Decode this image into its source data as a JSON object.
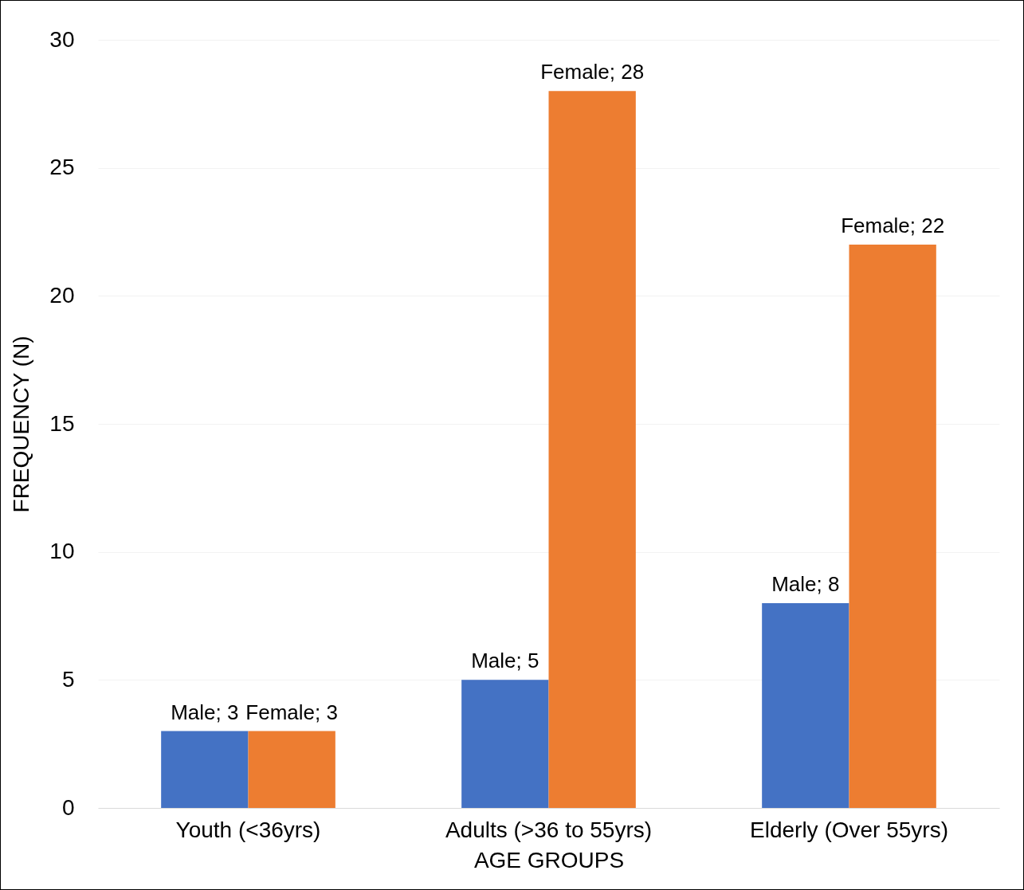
{
  "chart_data": {
    "type": "bar",
    "xlabel": "AGE GROUPS",
    "ylabel": "FREQUENCY (N)",
    "categories": [
      "Youth (<36yrs)",
      "Adults (>36 to 55yrs)",
      "Elderly (Over 55yrs)"
    ],
    "series": [
      {
        "color": "#4472c4",
        "values": [
          3,
          5,
          8
        ],
        "value_labels": [
          "Male; 3",
          "Male; 5",
          "Male; 8"
        ]
      },
      {
        "color": "#ed7d31",
        "values": [
          3,
          28,
          22
        ],
        "value_labels": [
          "Female; 3",
          "Female; 28",
          "Female; 22"
        ]
      }
    ],
    "ylim": [
      0,
      30
    ],
    "yticks": [
      0,
      5,
      10,
      15,
      20,
      25,
      30
    ],
    "grid": "y"
  }
}
